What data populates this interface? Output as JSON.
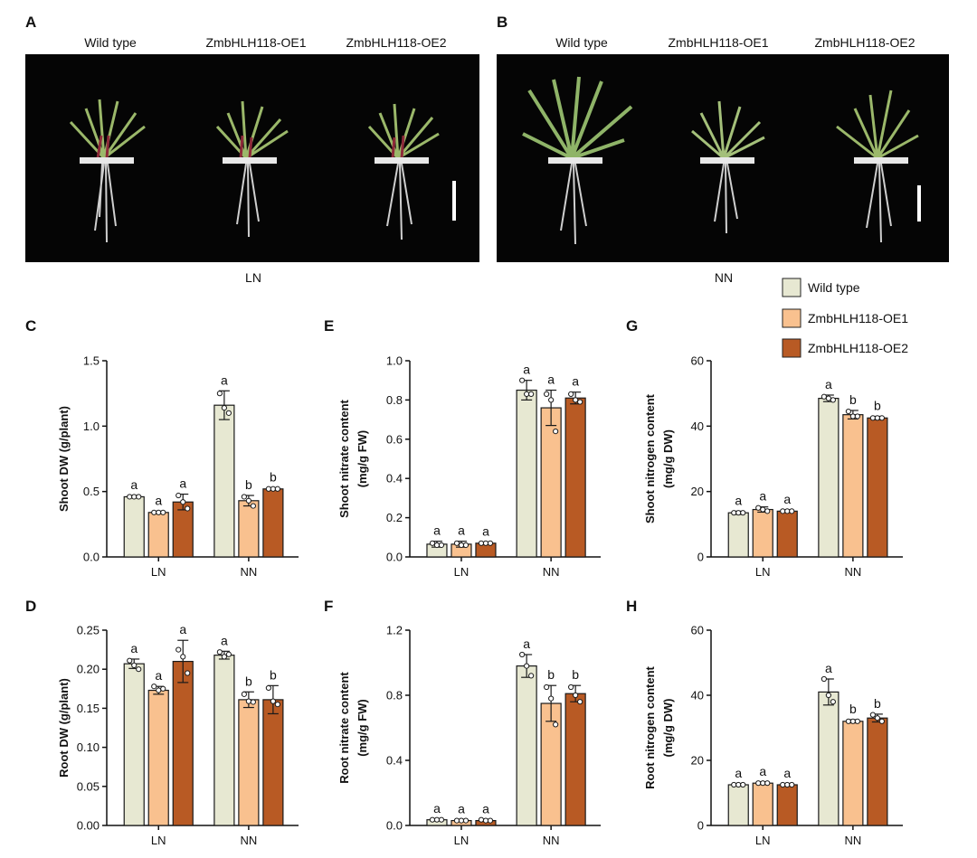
{
  "photos": [
    {
      "label": "A",
      "columns": [
        "Wild type",
        "ZmbHLH118-OE1",
        "ZmbHLH118-OE2"
      ],
      "condition": "LN"
    },
    {
      "label": "B",
      "columns": [
        "Wild type",
        "ZmbHLH118-OE1",
        "ZmbHLH118-OE2"
      ],
      "condition": "NN"
    }
  ],
  "legend": [
    {
      "name": "Wild type",
      "color": "#e7e8d2"
    },
    {
      "name": "ZmbHLH118-OE1",
      "color": "#f9c18f"
    },
    {
      "name": "ZmbHLH118-OE2",
      "color": "#b85a24"
    }
  ],
  "chart_data": [
    {
      "panel": "C",
      "type": "bar",
      "ylabel": "Shoot DW (g/plant)",
      "categories": [
        "LN",
        "NN"
      ],
      "ylim": [
        0,
        1.5
      ],
      "yticks": [
        0,
        0.5,
        1.0,
        1.5
      ],
      "ytick_labels": [
        "0.0",
        "0.5",
        "1.0",
        "1.5"
      ],
      "series": [
        {
          "name": "Wild type",
          "values": [
            0.46,
            1.16
          ],
          "errors": [
            0.01,
            0.11
          ],
          "points": [
            [
              0.46,
              0.46,
              0.46
            ],
            [
              1.25,
              1.14,
              1.1
            ]
          ],
          "letters": [
            "a",
            "a"
          ]
        },
        {
          "name": "ZmbHLH118-OE1",
          "values": [
            0.34,
            0.43
          ],
          "errors": [
            0.01,
            0.04
          ],
          "points": [
            [
              0.34,
              0.34,
              0.34
            ],
            [
              0.46,
              0.43,
              0.39
            ]
          ],
          "letters": [
            "a",
            "b"
          ]
        },
        {
          "name": "ZmbHLH118-OE2",
          "values": [
            0.42,
            0.52
          ],
          "errors": [
            0.06,
            0.01
          ],
          "points": [
            [
              0.47,
              0.42,
              0.37
            ],
            [
              0.52,
              0.52,
              0.52
            ]
          ],
          "letters": [
            "a",
            "b"
          ]
        }
      ]
    },
    {
      "panel": "D",
      "type": "bar",
      "ylabel": "Root DW (g/plant)",
      "categories": [
        "LN",
        "NN"
      ],
      "ylim": [
        0,
        0.25
      ],
      "yticks": [
        0,
        0.05,
        0.1,
        0.15,
        0.2,
        0.25
      ],
      "ytick_labels": [
        "0.00",
        "0.05",
        "0.10",
        "0.15",
        "0.20",
        "0.25"
      ],
      "series": [
        {
          "name": "Wild type",
          "values": [
            0.207,
            0.218
          ],
          "errors": [
            0.006,
            0.005
          ],
          "points": [
            [
              0.211,
              0.205,
              0.2
            ],
            [
              0.222,
              0.216,
              0.219
            ]
          ],
          "letters": [
            "a",
            "a"
          ]
        },
        {
          "name": "ZmbHLH118-OE1",
          "values": [
            0.173,
            0.161
          ],
          "errors": [
            0.005,
            0.01
          ],
          "points": [
            [
              0.178,
              0.173,
              0.175
            ],
            [
              0.168,
              0.159,
              0.158
            ]
          ],
          "letters": [
            "a",
            "b"
          ]
        },
        {
          "name": "ZmbHLH118-OE2",
          "values": [
            0.21,
            0.161
          ],
          "errors": [
            0.027,
            0.018
          ],
          "points": [
            [
              0.225,
              0.216,
              0.195
            ],
            [
              0.176,
              0.159,
              0.155
            ]
          ],
          "letters": [
            "a",
            "b"
          ]
        }
      ]
    },
    {
      "panel": "E",
      "type": "bar",
      "ylabel": "Shoot nitrate content",
      "ylabel2": "(mg/g FW)",
      "categories": [
        "LN",
        "NN"
      ],
      "ylim": [
        0,
        1.0
      ],
      "yticks": [
        0,
        0.2,
        0.4,
        0.6,
        0.8,
        1.0
      ],
      "ytick_labels": [
        "0.0",
        "0.2",
        "0.4",
        "0.6",
        "0.8",
        "1.0"
      ],
      "series": [
        {
          "name": "Wild type",
          "values": [
            0.065,
            0.85
          ],
          "errors": [
            0.015,
            0.05
          ],
          "points": [
            [
              0.07,
              0.06,
              0.06
            ],
            [
              0.9,
              0.83,
              0.83
            ]
          ],
          "letters": [
            "a",
            "a"
          ]
        },
        {
          "name": "ZmbHLH118-OE1",
          "values": [
            0.065,
            0.76
          ],
          "errors": [
            0.015,
            0.09
          ],
          "points": [
            [
              0.07,
              0.06,
              0.06
            ],
            [
              0.83,
              0.8,
              0.64
            ]
          ],
          "letters": [
            "a",
            "a"
          ]
        },
        {
          "name": "ZmbHLH118-OE2",
          "values": [
            0.07,
            0.81
          ],
          "errors": [
            0.005,
            0.03
          ],
          "points": [
            [
              0.07,
              0.07,
              0.07
            ],
            [
              0.83,
              0.8,
              0.79
            ]
          ],
          "letters": [
            "a",
            "a"
          ]
        }
      ]
    },
    {
      "panel": "F",
      "type": "bar",
      "ylabel": "Root nitrate content",
      "ylabel2": "(mg/g FW)",
      "categories": [
        "LN",
        "NN"
      ],
      "ylim": [
        0,
        1.2
      ],
      "yticks": [
        0,
        0.4,
        0.8,
        1.2
      ],
      "ytick_labels": [
        "0.0",
        "0.4",
        "0.8",
        "1.2"
      ],
      "series": [
        {
          "name": "Wild type",
          "values": [
            0.035,
            0.98
          ],
          "errors": [
            0.005,
            0.07
          ],
          "points": [
            [
              0.035,
              0.035,
              0.035
            ],
            [
              1.05,
              0.98,
              0.92
            ]
          ],
          "letters": [
            "a",
            "a"
          ]
        },
        {
          "name": "ZmbHLH118-OE1",
          "values": [
            0.03,
            0.75
          ],
          "errors": [
            0.005,
            0.11
          ],
          "points": [
            [
              0.03,
              0.03,
              0.03
            ],
            [
              0.85,
              0.78,
              0.62
            ]
          ],
          "letters": [
            "a",
            "b"
          ]
        },
        {
          "name": "ZmbHLH118-OE2",
          "values": [
            0.03,
            0.81
          ],
          "errors": [
            0.005,
            0.05
          ],
          "points": [
            [
              0.035,
              0.03,
              0.03
            ],
            [
              0.85,
              0.8,
              0.76
            ]
          ],
          "letters": [
            "a",
            "b"
          ]
        }
      ]
    },
    {
      "panel": "G",
      "type": "bar",
      "ylabel": "Shoot nitrogen content",
      "ylabel2": "(mg/g DW)",
      "categories": [
        "LN",
        "NN"
      ],
      "ylim": [
        0,
        60
      ],
      "yticks": [
        0,
        20,
        40,
        60
      ],
      "ytick_labels": [
        "0",
        "20",
        "40",
        "60"
      ],
      "series": [
        {
          "name": "Wild type",
          "values": [
            13.5,
            48.5
          ],
          "errors": [
            0.5,
            1.0
          ],
          "points": [
            [
              13.5,
              13.5,
              13.5
            ],
            [
              49,
              48.5,
              48
            ]
          ],
          "letters": [
            "a",
            "a"
          ]
        },
        {
          "name": "ZmbHLH118-OE1",
          "values": [
            14.5,
            43.5
          ],
          "errors": [
            0.8,
            1.3
          ],
          "points": [
            [
              15,
              14.5,
              14
            ],
            [
              44.5,
              43,
              43
            ]
          ],
          "letters": [
            "a",
            "b"
          ]
        },
        {
          "name": "ZmbHLH118-OE2",
          "values": [
            14,
            42.5
          ],
          "errors": [
            0.4,
            0.5
          ],
          "points": [
            [
              14,
              14,
              14
            ],
            [
              42.5,
              42.5,
              42.5
            ]
          ],
          "letters": [
            "a",
            "b"
          ]
        }
      ]
    },
    {
      "panel": "H",
      "type": "bar",
      "ylabel": "Root nitrogen content",
      "ylabel2": "(mg/g DW)",
      "categories": [
        "LN",
        "NN"
      ],
      "ylim": [
        0,
        60
      ],
      "yticks": [
        0,
        20,
        40,
        60
      ],
      "ytick_labels": [
        "0",
        "20",
        "40",
        "60"
      ],
      "series": [
        {
          "name": "Wild type",
          "values": [
            12.5,
            41
          ],
          "errors": [
            0.3,
            4
          ],
          "points": [
            [
              12.5,
              12.5,
              12.5
            ],
            [
              45,
              40,
              38
            ]
          ],
          "letters": [
            "a",
            "a"
          ]
        },
        {
          "name": "ZmbHLH118-OE1",
          "values": [
            13,
            32
          ],
          "errors": [
            0.4,
            0.5
          ],
          "points": [
            [
              13,
              13,
              13
            ],
            [
              32,
              32,
              32
            ]
          ],
          "letters": [
            "a",
            "b"
          ]
        },
        {
          "name": "ZmbHLH118-OE2",
          "values": [
            12.5,
            33
          ],
          "errors": [
            0.3,
            1.2
          ],
          "points": [
            [
              12.5,
              12.5,
              12.5
            ],
            [
              34,
              33,
              32
            ]
          ],
          "letters": [
            "a",
            "b"
          ]
        }
      ]
    }
  ]
}
